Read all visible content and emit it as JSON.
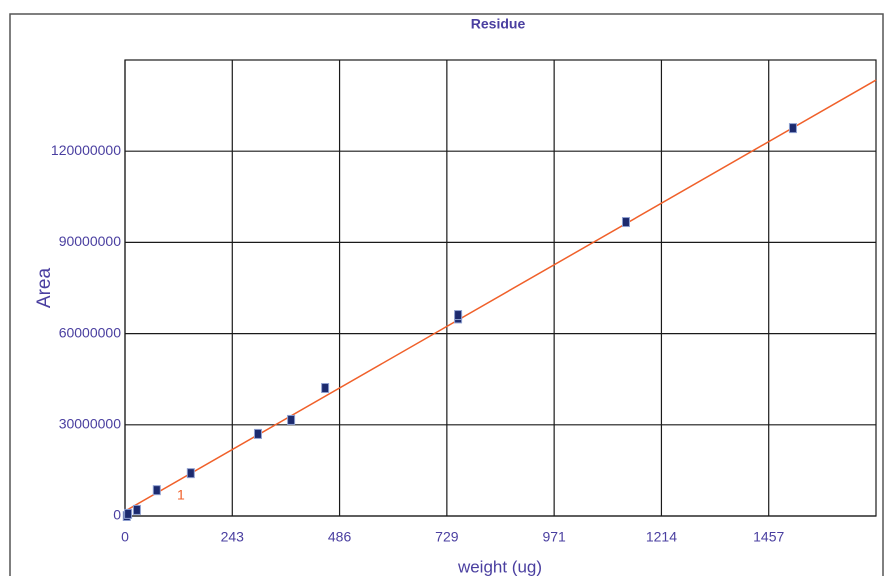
{
  "chart_data": {
    "type": "scatter",
    "title": "Residue",
    "xlabel": "weight (ug)",
    "ylabel": "Area",
    "xlim": [
      0,
      1700
    ],
    "ylim": [
      0,
      150000000
    ],
    "xticks": [
      0,
      {
        "value": 242.857,
        "label": "243"
      },
      {
        "value": 485.714,
        "label": "486"
      },
      {
        "value": 728.571,
        "label": "729"
      },
      {
        "value": 971.429,
        "label": "971"
      },
      {
        "value": 1214.286,
        "label": "1214"
      },
      {
        "value": 1457.143,
        "label": "1457"
      }
    ],
    "yticks": [
      0,
      30000000,
      60000000,
      90000000,
      120000000
    ],
    "grid": true,
    "series": [
      {
        "color": "#1c2a6e",
        "x": [
          4,
          7,
          27,
          72,
          149,
          301,
          376,
          453,
          754,
          754,
          1134,
          1512
        ],
        "values": [
          0,
          700000,
          2000000,
          8500000,
          14100000,
          27000000,
          31600000,
          42100000,
          65000000,
          66100000,
          96700000,
          127600000
        ]
      }
    ],
    "fit": {
      "label": "1",
      "color": "#f0602a",
      "x": [
        0,
        1700
      ],
      "values": [
        1600000,
        143400000
      ]
    }
  }
}
